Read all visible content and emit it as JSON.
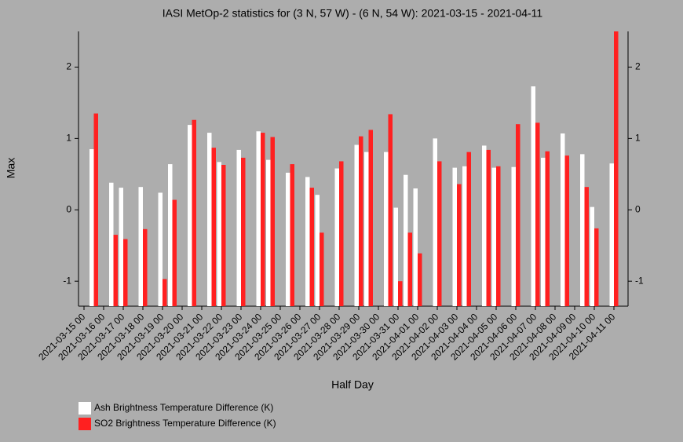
{
  "chart_data": {
    "type": "bar",
    "title": "IASI MetOp-2 statistics for (3 N, 57 W) - (6 N, 54 W): 2021-03-15 - 2021-04-11",
    "x_label": "Half Day",
    "y_label": "Max",
    "categories": [
      "2021-03-15 00",
      null,
      "2021-03-16 00",
      null,
      "2021-03-17 00",
      null,
      "2021-03-18 00",
      null,
      "2021-03-19 00",
      null,
      "2021-03-20 00",
      null,
      "2021-03-21 00",
      null,
      "2021-03-22 00",
      null,
      "2021-03-23 00",
      null,
      "2021-03-24 00",
      null,
      "2021-03-25 00",
      null,
      "2021-03-26 00",
      null,
      "2021-03-27 00",
      null,
      "2021-03-28 00",
      null,
      "2021-03-29 00",
      null,
      "2021-03-30 00",
      null,
      "2021-03-31 00",
      null,
      "2021-04-01 00",
      null,
      "2021-04-02 00",
      null,
      "2021-04-03 00",
      null,
      "2021-04-04 00",
      null,
      "2021-04-05 00",
      null,
      "2021-04-06 00",
      null,
      "2021-04-07 00",
      null,
      "2021-04-08 00",
      null,
      "2021-04-09 00",
      null,
      "2021-04-10 00",
      null,
      "2021-04-11 00"
    ],
    "series": [
      {
        "name": "Ash Brightness Temperature Difference (K)",
        "color": "#ffffff",
        "values": [
          null,
          0.85,
          null,
          0.38,
          0.31,
          null,
          0.32,
          null,
          0.24,
          0.64,
          null,
          1.19,
          null,
          1.08,
          0.67,
          null,
          0.84,
          null,
          1.1,
          0.7,
          null,
          0.52,
          null,
          0.46,
          0.21,
          null,
          0.58,
          null,
          0.91,
          0.81,
          null,
          0.81,
          0.03,
          0.49,
          0.3,
          null,
          1.0,
          null,
          0.59,
          0.61,
          null,
          0.9,
          0.59,
          null,
          0.6,
          null,
          1.73,
          0.73,
          null,
          1.07,
          null,
          0.78,
          0.04,
          null,
          0.65
        ]
      },
      {
        "name": "SO2 Brightness Temperature Difference (K)",
        "color": "#ff2020",
        "values": [
          null,
          1.35,
          null,
          -0.35,
          -0.41,
          null,
          -0.27,
          null,
          -0.97,
          0.14,
          null,
          1.26,
          null,
          0.87,
          0.63,
          null,
          0.73,
          null,
          1.08,
          1.02,
          null,
          0.64,
          null,
          0.31,
          -0.32,
          null,
          0.68,
          null,
          1.03,
          1.12,
          null,
          1.34,
          -1.0,
          -0.32,
          -0.61,
          null,
          0.68,
          null,
          0.36,
          0.81,
          null,
          0.84,
          0.61,
          null,
          1.2,
          null,
          1.22,
          0.82,
          null,
          0.76,
          null,
          0.32,
          -0.26,
          null,
          2.5
        ]
      }
    ],
    "ylim": [
      -1.35,
      2.5
    ],
    "yticks": [
      -1,
      0,
      1,
      2
    ]
  }
}
